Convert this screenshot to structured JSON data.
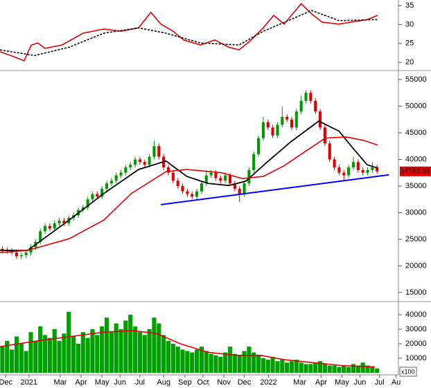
{
  "chart_data": [
    {
      "type": "line",
      "xlim": [
        0,
        84
      ],
      "ylim": [
        18.2,
        36.46
      ],
      "yticks": [
        35,
        30,
        25,
        20
      ],
      "series": [
        {
          "name": "indicator",
          "color": "#e00000",
          "style": "solid",
          "x": [
            0,
            2.9,
            5.1,
            6.6,
            8,
            9.5,
            13.1,
            17.5,
            21.9,
            25.5,
            29.2,
            31.8,
            33.9,
            36.5,
            38.7,
            42.3,
            45.3,
            48.2,
            50.4,
            52.6,
            55.5,
            57.7,
            59.9,
            63.5,
            65.7,
            67.9,
            71.5,
            75.9,
            77.4,
            79.6
          ],
          "values": [
            22.8,
            21.5,
            20.4,
            24.6,
            25.1,
            23.7,
            24.6,
            27.7,
            28.8,
            28.2,
            29.1,
            33.2,
            30.1,
            28.2,
            25.9,
            24.6,
            25.9,
            24.0,
            23.3,
            25.5,
            29.1,
            32.4,
            30.1,
            35.5,
            32.8,
            30.6,
            30.1,
            31.0,
            31.3,
            32.4
          ]
        },
        {
          "name": "average",
          "color": "#000000",
          "style": "dashed",
          "x": [
            0,
            7.3,
            14.6,
            21.9,
            29.2,
            35,
            42.3,
            50.4,
            55.5,
            61.3,
            65.7,
            71.5,
            79.6
          ],
          "values": [
            23.3,
            21.8,
            24.0,
            27.7,
            29.1,
            27.7,
            25.1,
            24.6,
            28.2,
            31.3,
            33.7,
            31.0,
            31.3
          ]
        }
      ]
    },
    {
      "type": "candlestick",
      "xlim": [
        0,
        84
      ],
      "ylim": [
        13430,
        56560
      ],
      "yticks": [
        55000,
        50000,
        45000,
        40000,
        35000,
        30000,
        25000,
        20000,
        15000
      ],
      "up_color": "#009900",
      "down_color": "#dd0000",
      "open": [
        23200,
        23000,
        22800,
        22500,
        21800,
        22000,
        22500,
        23500,
        24500,
        26500,
        27500,
        27000,
        28000,
        28500,
        28000,
        29000,
        29500,
        30500,
        31000,
        32500,
        33500,
        33000,
        34500,
        35500,
        36000,
        37000,
        37500,
        38500,
        39000,
        40000,
        39500,
        39000,
        40500,
        42500,
        40500,
        38500,
        37500,
        36000,
        35000,
        34000,
        33500,
        33000,
        34000,
        35500,
        37000,
        37500,
        36500,
        36000,
        37000,
        35500,
        34500,
        33500,
        35500,
        38000,
        41000,
        44000,
        47000,
        46000,
        44500,
        46500,
        48000,
        47500,
        46000,
        49000,
        51000,
        52500,
        51000,
        49000,
        46000,
        43000,
        40000,
        38500,
        37500,
        37000,
        38500,
        39500,
        38000,
        37500,
        38000,
        38500
      ],
      "high": [
        23700,
        23500,
        23300,
        23000,
        22500,
        23000,
        24000,
        25000,
        27000,
        28000,
        28000,
        28500,
        29000,
        29000,
        29500,
        30000,
        31000,
        31500,
        33000,
        34000,
        34000,
        35000,
        36000,
        36500,
        37500,
        38000,
        39000,
        39500,
        40500,
        40500,
        40000,
        41000,
        43500,
        43000,
        41000,
        39000,
        38000,
        36500,
        35500,
        34500,
        34000,
        34500,
        36000,
        38000,
        38000,
        38000,
        37000,
        37500,
        37500,
        36000,
        35000,
        36000,
        38500,
        41500,
        44500,
        48000,
        47500,
        46500,
        47000,
        50000,
        48500,
        48000,
        49500,
        52000,
        53000,
        53000,
        51500,
        49500,
        46500,
        43500,
        40500,
        39000,
        38000,
        39000,
        40500,
        40000,
        38500,
        38500,
        39500,
        39000
      ],
      "low": [
        22500,
        22300,
        22000,
        21300,
        21300,
        21500,
        22000,
        23000,
        24000,
        26000,
        26500,
        26500,
        27500,
        27500,
        27500,
        28500,
        29000,
        30000,
        30500,
        32000,
        32500,
        32500,
        34000,
        35000,
        35500,
        36500,
        37000,
        38000,
        38500,
        39000,
        38500,
        38500,
        40000,
        40000,
        38000,
        37000,
        35500,
        34500,
        33500,
        33000,
        32500,
        32500,
        33500,
        35000,
        36500,
        36000,
        35500,
        35500,
        35000,
        34000,
        32000,
        33000,
        35000,
        37500,
        40500,
        43500,
        45500,
        44000,
        44000,
        46000,
        47000,
        45500,
        45500,
        48500,
        50500,
        50500,
        48500,
        45500,
        42500,
        39500,
        38000,
        37000,
        36000,
        36500,
        38000,
        37500,
        37000,
        37000,
        37500,
        37250
      ],
      "close": [
        23000,
        22800,
        22500,
        21800,
        22000,
        22500,
        23500,
        24500,
        26500,
        27500,
        27000,
        28000,
        28500,
        28000,
        29000,
        29500,
        30500,
        31000,
        32500,
        33500,
        33000,
        34500,
        35500,
        36000,
        37000,
        37500,
        38500,
        39000,
        40000,
        39500,
        39000,
        40500,
        42500,
        40500,
        38500,
        37500,
        36000,
        35000,
        34000,
        33500,
        33000,
        34000,
        35500,
        37000,
        37500,
        36500,
        36000,
        37000,
        35500,
        34500,
        33500,
        35500,
        38000,
        41000,
        44000,
        47000,
        46000,
        44500,
        46500,
        48000,
        47500,
        46000,
        49000,
        51000,
        52500,
        51000,
        49000,
        46000,
        43000,
        40000,
        38500,
        37500,
        37000,
        38500,
        39500,
        38000,
        37500,
        38000,
        38500,
        37750
      ],
      "series": [
        {
          "name": "MA short",
          "color": "#000000",
          "x": [
            0,
            5.8,
            14.6,
            21.9,
            29.2,
            35,
            39.4,
            43.8,
            48.2,
            51.8,
            56.2,
            61.3,
            67.2,
            71.5,
            74.5,
            77.4,
            79.6
          ],
          "values": [
            22900,
            22900,
            28600,
            33600,
            38100,
            39700,
            36800,
            35500,
            35100,
            35900,
            39400,
            43300,
            47200,
            45300,
            42000,
            39000,
            38400
          ]
        },
        {
          "name": "MA long",
          "color": "#e00000",
          "x": [
            0,
            5.8,
            14.6,
            21.9,
            27.7,
            35,
            39.4,
            46.7,
            51.1,
            55.5,
            59.9,
            64.2,
            68.6,
            73,
            76.6,
            79.6
          ],
          "values": [
            22500,
            22900,
            25100,
            28600,
            33600,
            37700,
            38100,
            37500,
            36400,
            36800,
            38800,
            41400,
            44000,
            44200,
            43600,
            42700
          ]
        }
      ],
      "trendline": {
        "color": "#0000ff",
        "x": [
          33.9,
          82
        ],
        "values": [
          31500,
          37100
        ]
      },
      "last_price": {
        "value": 37750,
        "label": "37750.00"
      }
    },
    {
      "type": "bar",
      "xlim": [
        0,
        84
      ],
      "ylim": [
        0,
        48570
      ],
      "yticks": [
        40000,
        30000,
        20000,
        10000
      ],
      "unit_note": "x100",
      "color": "#00a000",
      "values": [
        18000,
        22000,
        16000,
        25000,
        20000,
        15000,
        28000,
        22000,
        32000,
        26000,
        24000,
        30000,
        22000,
        27000,
        42000,
        25000,
        20000,
        28000,
        24000,
        30000,
        26000,
        32000,
        38000,
        28000,
        34000,
        30000,
        36000,
        40000,
        32000,
        28000,
        26000,
        30000,
        38000,
        34000,
        26000,
        22000,
        20000,
        18000,
        16000,
        15000,
        14000,
        16000,
        18000,
        15000,
        13000,
        12000,
        11000,
        14000,
        18000,
        13000,
        12000,
        15000,
        18000,
        14000,
        12000,
        10000,
        9000,
        11000,
        8000,
        9000,
        7000,
        8000,
        9000,
        7000,
        6000,
        6000,
        7000,
        8000,
        6000,
        5000,
        5000,
        4000,
        5000,
        4000,
        6000,
        5000,
        7000,
        5000,
        4000,
        3000
      ],
      "series": [
        {
          "name": "volume MA",
          "color": "#e00000",
          "x": [
            0,
            8,
            15,
            22,
            28,
            33,
            38,
            44,
            50,
            55,
            60,
            66,
            72,
            79
          ],
          "values": [
            18000,
            22000,
            25000,
            28000,
            29000,
            27000,
            20000,
            14000,
            12000,
            12000,
            9000,
            7000,
            5000,
            4000
          ]
        }
      ],
      "xticks": [
        {
          "value": 1.2,
          "label": "Dec"
        },
        {
          "value": 6.1,
          "label": "2021"
        },
        {
          "value": 12.7,
          "label": "Mar"
        },
        {
          "value": 17.1,
          "label": "Apr"
        },
        {
          "value": 21.5,
          "label": "May"
        },
        {
          "value": 25.3,
          "label": "Jun"
        },
        {
          "value": 29.5,
          "label": "Jul"
        },
        {
          "value": 34.5,
          "label": "Aug"
        },
        {
          "value": 39,
          "label": "Sep"
        },
        {
          "value": 42.8,
          "label": "Oct"
        },
        {
          "value": 47.2,
          "label": "Nov"
        },
        {
          "value": 51.5,
          "label": "Dec"
        },
        {
          "value": 56.6,
          "label": "2022"
        },
        {
          "value": 63.2,
          "label": "Mar"
        },
        {
          "value": 67.7,
          "label": "Apr"
        },
        {
          "value": 72.1,
          "label": "May"
        },
        {
          "value": 75.9,
          "label": "Jun"
        },
        {
          "value": 80,
          "label": "Jul"
        },
        {
          "value": 83.5,
          "label": "Au"
        }
      ]
    }
  ]
}
